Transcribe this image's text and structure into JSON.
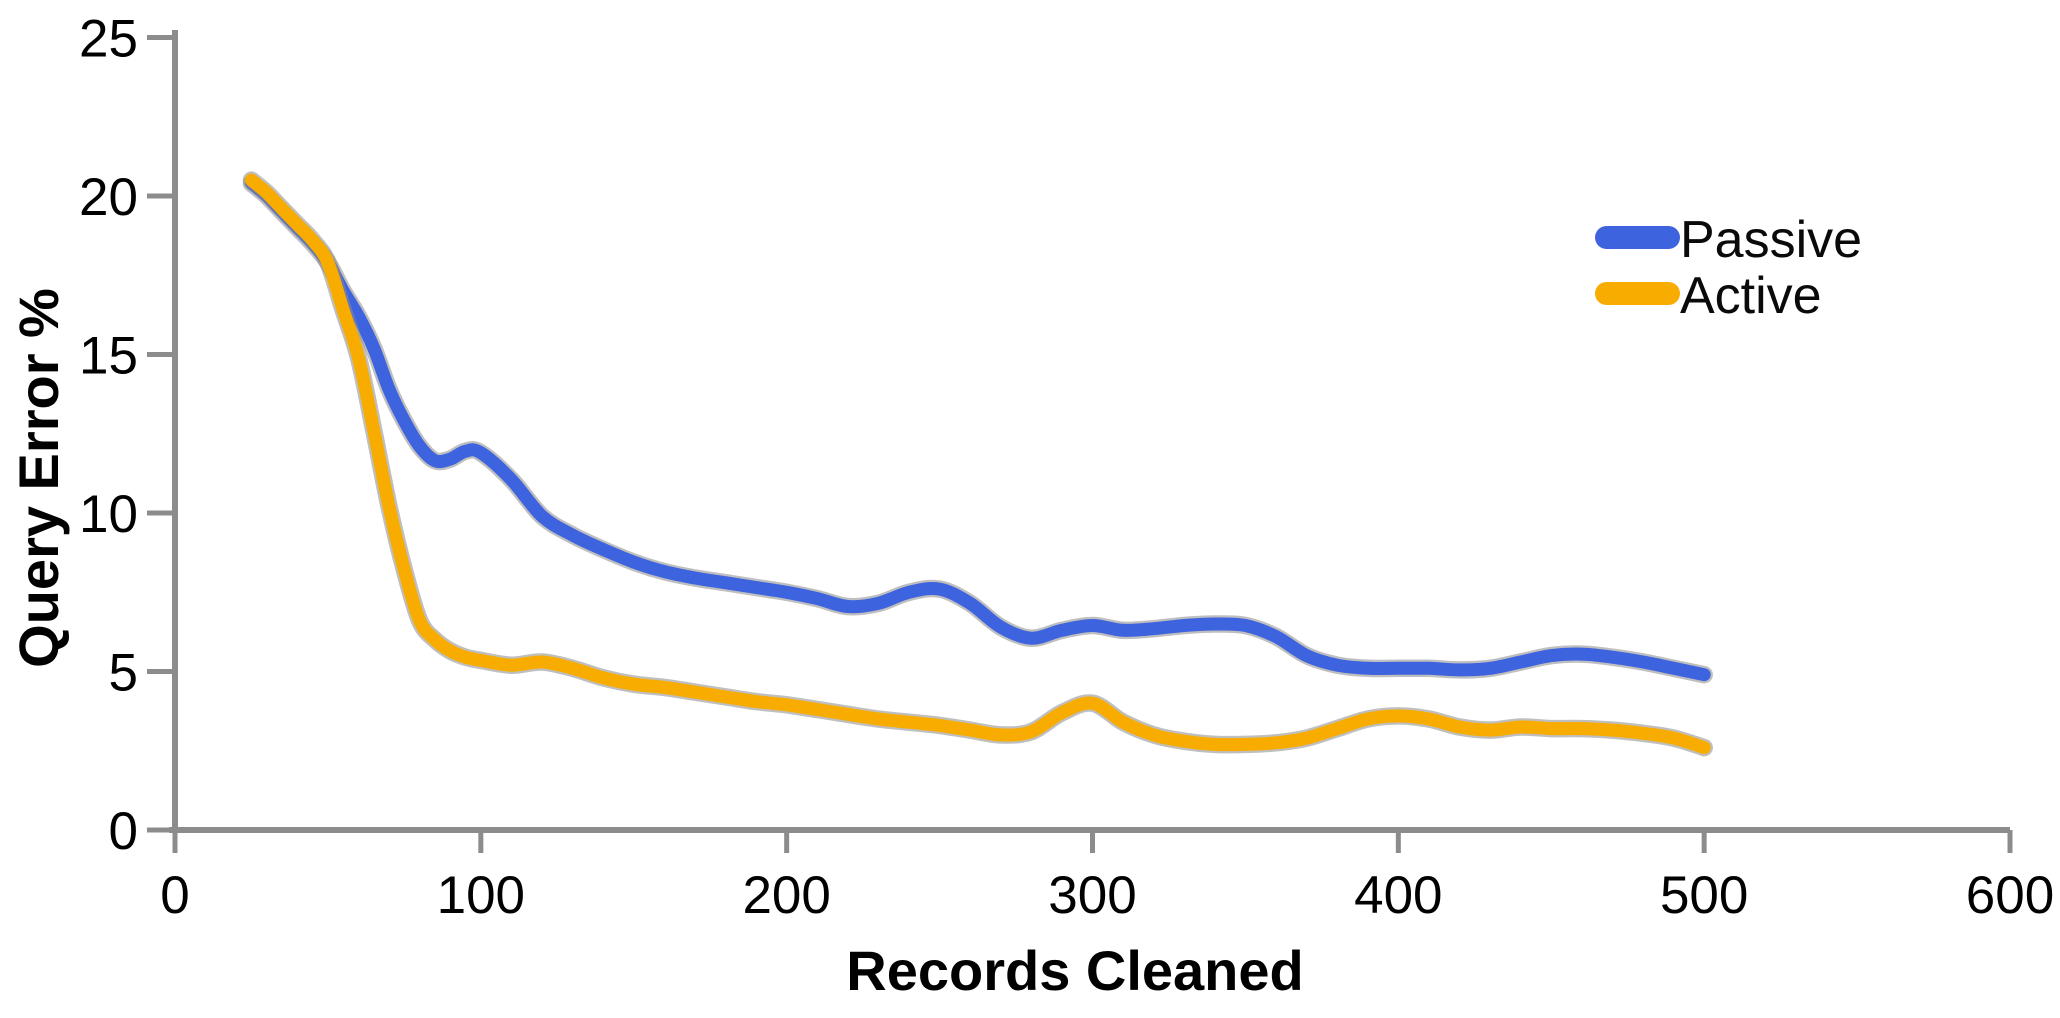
{
  "chart": {
    "background": "#ffffff",
    "axis_color": "#8c8c8c",
    "text_color": "#000000",
    "passive_color": "#3e63df",
    "active_color": "#f8ac00",
    "line_outline_color": "#8a8a8a"
  },
  "chart_data": {
    "type": "line",
    "title": "",
    "xlabel": "Records Cleaned",
    "ylabel": "Query Error %",
    "xlim": [
      0,
      600
    ],
    "ylim": [
      0,
      25
    ],
    "x_ticks": [
      0,
      100,
      200,
      300,
      400,
      500,
      600
    ],
    "y_ticks": [
      0,
      5,
      10,
      15,
      20,
      25
    ],
    "grid": false,
    "legend_position": "upper right",
    "x": [
      25,
      30,
      35,
      40,
      45,
      50,
      55,
      60,
      65,
      70,
      75,
      80,
      85,
      90,
      95,
      100,
      110,
      120,
      130,
      140,
      150,
      160,
      170,
      180,
      190,
      200,
      210,
      220,
      230,
      240,
      250,
      260,
      270,
      280,
      290,
      300,
      310,
      320,
      330,
      340,
      350,
      360,
      370,
      380,
      390,
      400,
      410,
      420,
      430,
      440,
      450,
      460,
      470,
      480,
      490,
      500
    ],
    "series": [
      {
        "name": "Passive",
        "color": "#3e63df",
        "values": [
          20.4,
          20.0,
          19.5,
          19.0,
          18.5,
          17.9,
          17.0,
          16.2,
          15.2,
          13.9,
          12.9,
          12.1,
          11.65,
          11.7,
          11.95,
          11.9,
          11.05,
          9.9,
          9.3,
          8.85,
          8.45,
          8.15,
          7.95,
          7.8,
          7.65,
          7.5,
          7.3,
          7.05,
          7.15,
          7.5,
          7.6,
          7.15,
          6.4,
          6.05,
          6.3,
          6.45,
          6.3,
          6.35,
          6.45,
          6.5,
          6.45,
          6.1,
          5.5,
          5.2,
          5.1,
          5.1,
          5.1,
          5.05,
          5.1,
          5.3,
          5.5,
          5.55,
          5.45,
          5.3,
          5.1,
          4.9
        ]
      },
      {
        "name": "Active",
        "color": "#f8ac00",
        "values": [
          20.5,
          20.1,
          19.6,
          19.1,
          18.6,
          17.9,
          16.4,
          14.9,
          12.6,
          10.2,
          8.2,
          6.6,
          6.0,
          5.65,
          5.45,
          5.35,
          5.2,
          5.3,
          5.1,
          4.8,
          4.6,
          4.5,
          4.35,
          4.2,
          4.05,
          3.95,
          3.8,
          3.65,
          3.5,
          3.4,
          3.3,
          3.15,
          3.0,
          3.1,
          3.7,
          4.0,
          3.4,
          3.0,
          2.8,
          2.7,
          2.7,
          2.75,
          2.9,
          3.2,
          3.5,
          3.6,
          3.5,
          3.25,
          3.15,
          3.25,
          3.2,
          3.2,
          3.15,
          3.05,
          2.9,
          2.6
        ]
      }
    ]
  }
}
